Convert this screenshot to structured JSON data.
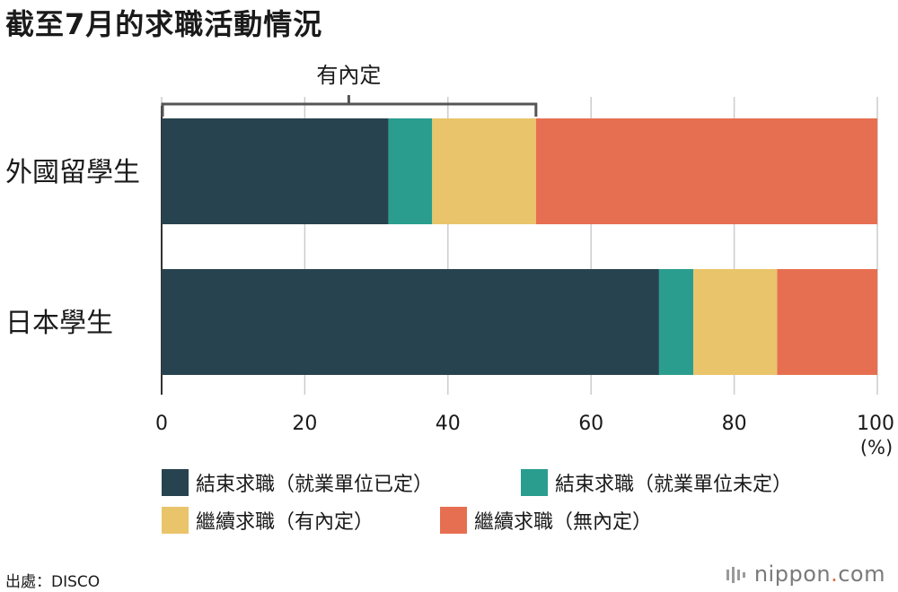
{
  "title": "截至7月的求職活動情況",
  "bracket_label": "有內定",
  "unit": "(%)",
  "source": "出處：DISCO",
  "brand": {
    "name": "nippon",
    "dot": ".",
    "tld": "com"
  },
  "colors": {
    "s1": "#27434f",
    "s2": "#2a9d8f",
    "s3": "#e9c46a",
    "s4": "#e76f51",
    "grid": "#cccccc",
    "bracket": "#555555"
  },
  "chart_data": {
    "type": "bar",
    "orientation": "horizontal",
    "stacked": true,
    "categories": [
      "外國留學生",
      "日本學生"
    ],
    "series": [
      {
        "name": "結束求職（就業單位已定）",
        "values": [
          31.7,
          69.5
        ]
      },
      {
        "name": "結束求職（就業單位未定）",
        "values": [
          6.1,
          4.8
        ]
      },
      {
        "name": "繼續求職（有內定）",
        "values": [
          14.5,
          11.7
        ]
      },
      {
        "name": "繼續求職（無內定）",
        "values": [
          47.7,
          14.0
        ]
      }
    ],
    "xlim": [
      0,
      100
    ],
    "xticks": [
      "0",
      "20",
      "40",
      "60",
      "80",
      "100"
    ],
    "grid": true,
    "legend": "bottom"
  }
}
